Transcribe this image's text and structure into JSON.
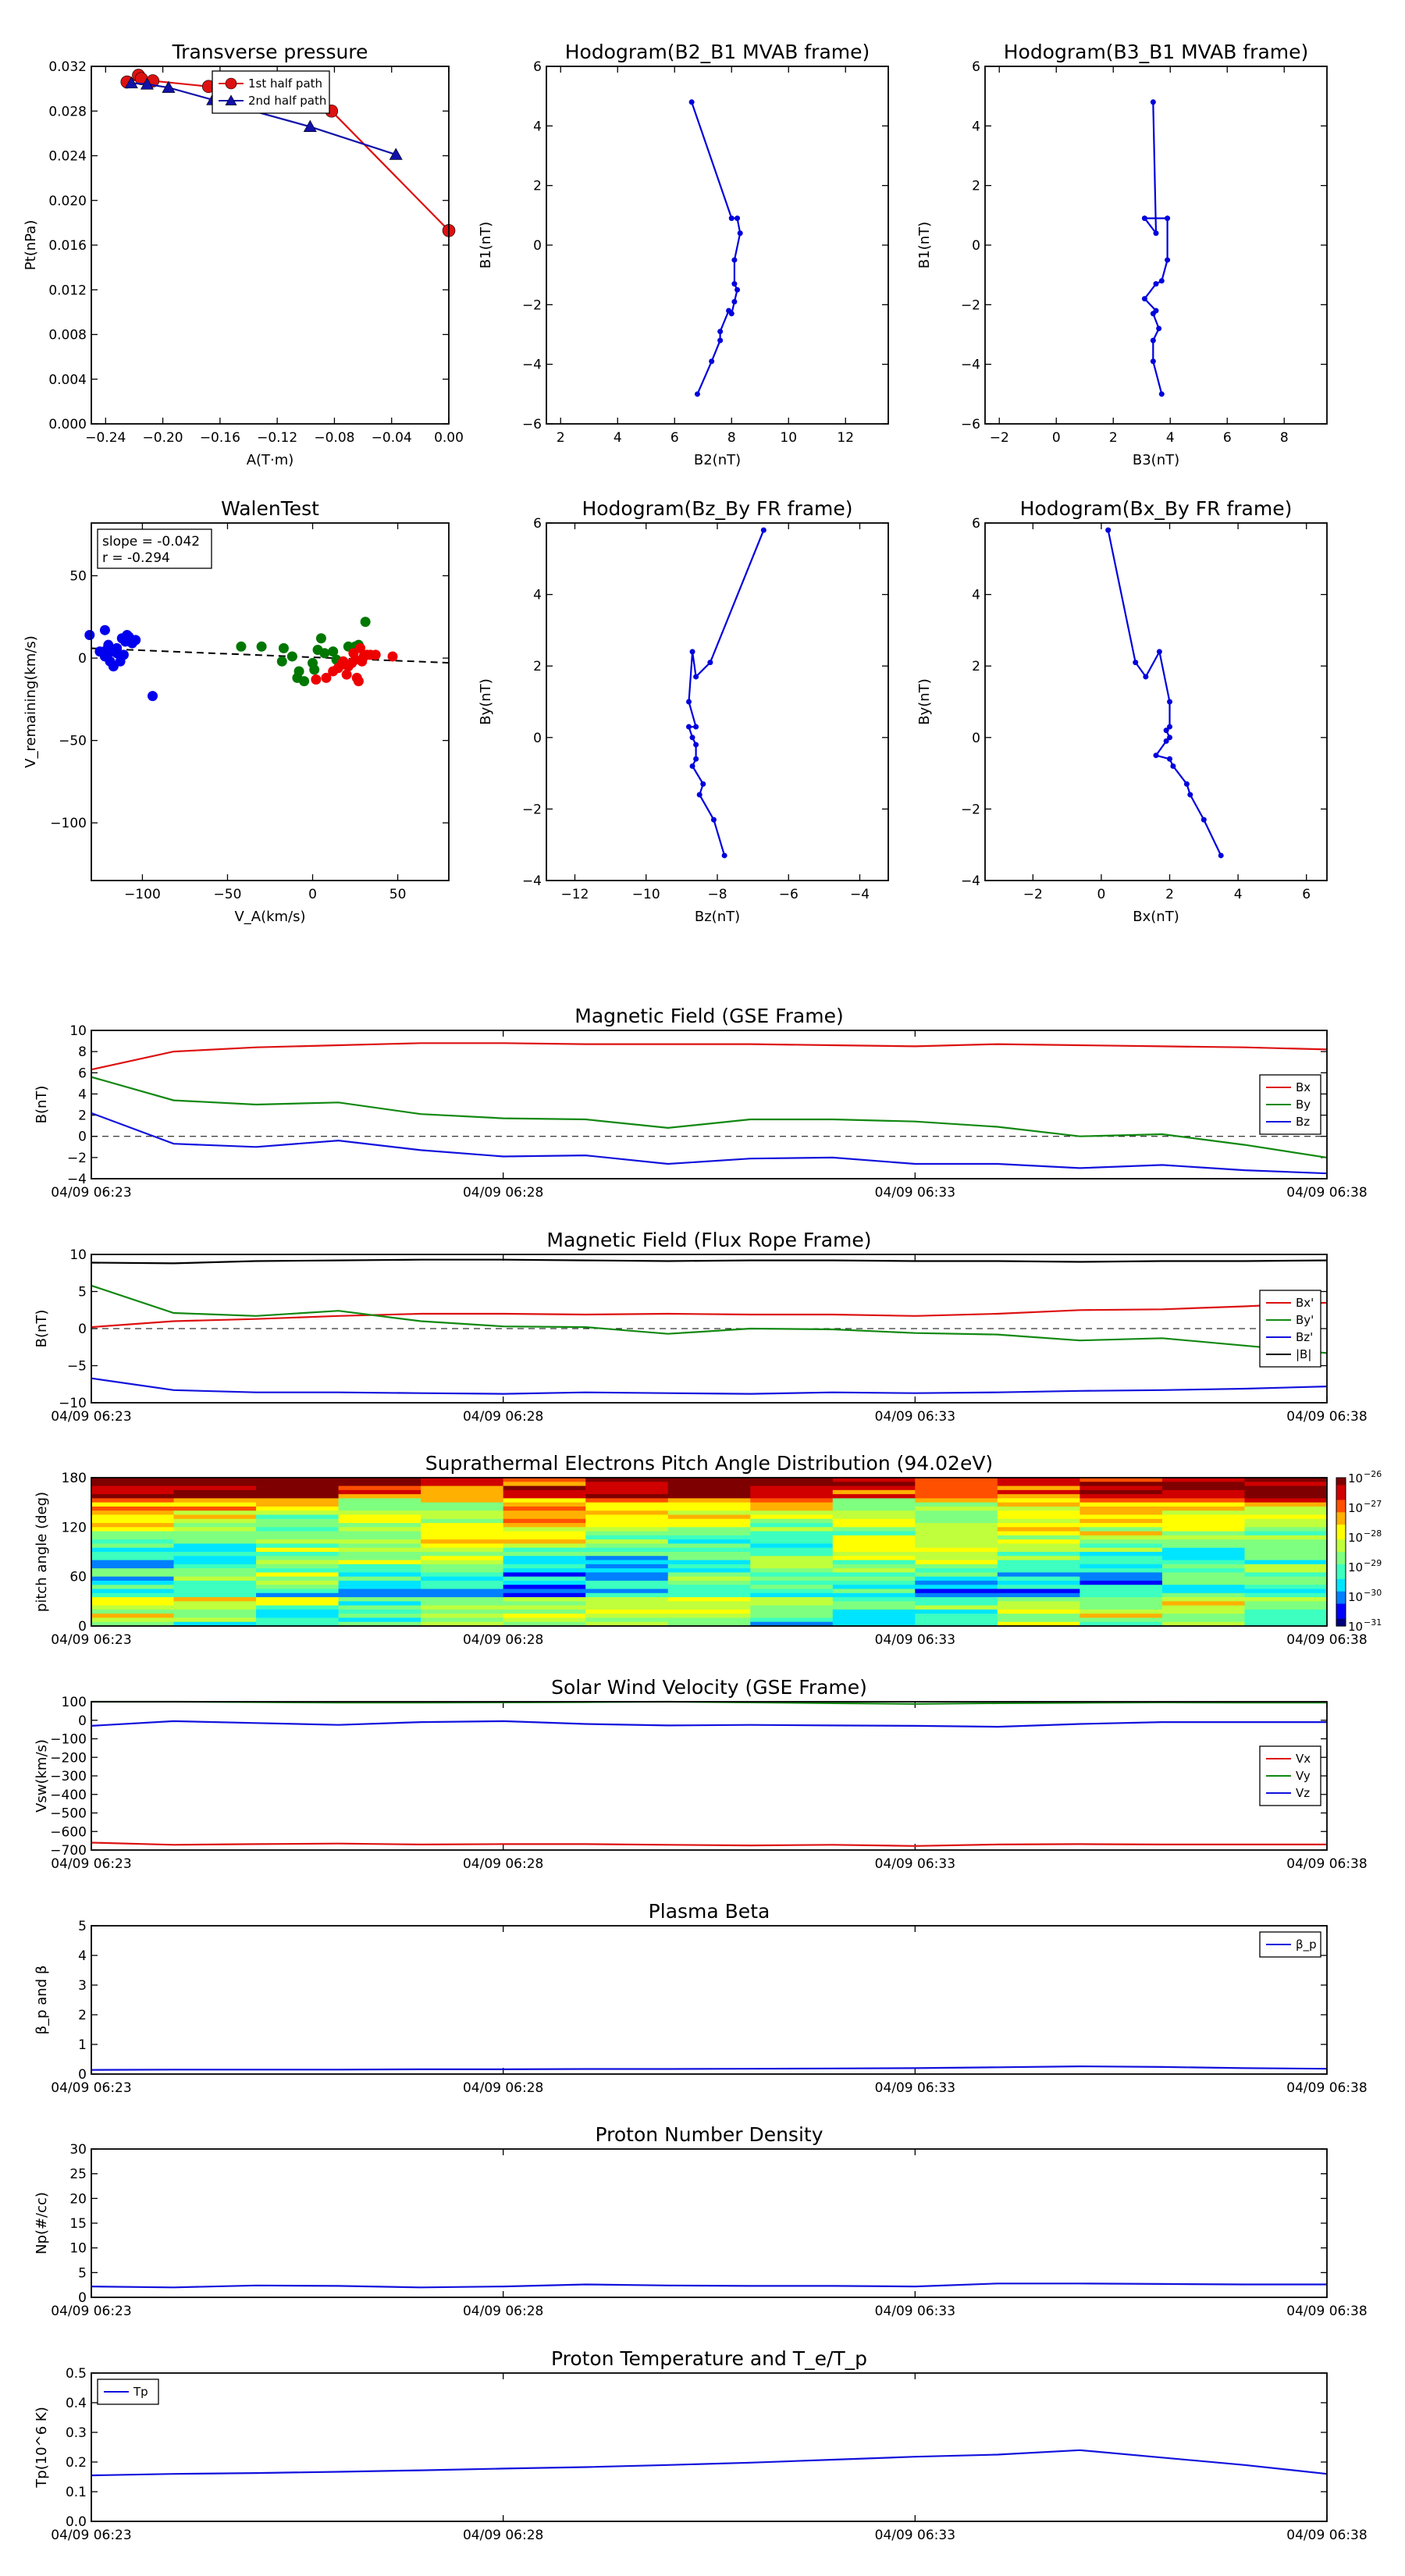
{
  "time_ticks": [
    "04/09 06:23",
    "04/09 06:28",
    "04/09 06:33",
    "04/09 06:38"
  ],
  "chart_data": [
    {
      "type": "line",
      "title": "Transverse pressure",
      "xlabel": "A(T·m)",
      "ylabel": "Pt(nPa)",
      "xlim": [
        -0.25,
        0.0
      ],
      "ylim": [
        0.0,
        0.032
      ],
      "xticks": [
        -0.24,
        -0.2,
        -0.16,
        -0.12,
        -0.08,
        -0.04,
        0.0
      ],
      "xtick_labels": [
        "−0.24",
        "−0.20",
        "−0.16",
        "−0.12",
        "−0.08",
        "−0.04",
        "0.00"
      ],
      "yticks": [
        0.0,
        0.004,
        0.008,
        0.012,
        0.016,
        0.02,
        0.024,
        0.028,
        0.032
      ],
      "ytick_labels": [
        "0.000",
        "0.004",
        "0.008",
        "0.012",
        "0.016",
        "0.020",
        "0.024",
        "0.028",
        "0.032"
      ],
      "legend_location": "top-center",
      "series": [
        {
          "name": "1st half path",
          "color": "#dd1111",
          "marker": "circle",
          "x": [
            0.0,
            -0.082,
            -0.168,
            -0.207,
            -0.217,
            -0.225,
            -0.215
          ],
          "y": [
            0.0173,
            0.028,
            0.0302,
            0.0307,
            0.0312,
            0.0306,
            0.0309
          ]
        },
        {
          "name": "2nd half path",
          "color": "#1111aa",
          "marker": "triangle",
          "x": [
            -0.222,
            -0.211,
            -0.196,
            -0.165,
            -0.097,
            -0.037
          ],
          "y": [
            0.0305,
            0.0304,
            0.0301,
            0.029,
            0.0266,
            0.0241
          ]
        }
      ]
    },
    {
      "type": "line",
      "title": "Hodogram(B2_B1 MVAB frame)",
      "xlabel": "B2(nT)",
      "ylabel": "B1(nT)",
      "xlim": [
        1.5,
        13.5
      ],
      "ylim": [
        -6,
        6
      ],
      "xticks": [
        2,
        4,
        6,
        8,
        10,
        12
      ],
      "xtick_labels": [
        "2",
        "4",
        "6",
        "8",
        "10",
        "12"
      ],
      "yticks": [
        -6,
        -4,
        -2,
        0,
        2,
        4,
        6
      ],
      "ytick_labels": [
        "−6",
        "−4",
        "−2",
        "0",
        "2",
        "4",
        "6"
      ],
      "series": [
        {
          "color": "#0000dd",
          "x": [
            6.6,
            8.0,
            8.2,
            8.3,
            8.1,
            8.1,
            8.2,
            8.1,
            8.0,
            7.9,
            7.6,
            7.6,
            7.3,
            6.8
          ],
          "y": [
            4.8,
            0.9,
            0.9,
            0.4,
            -0.5,
            -1.3,
            -1.5,
            -1.9,
            -2.3,
            -2.2,
            -2.9,
            -3.2,
            -3.9,
            -5.0
          ]
        }
      ]
    },
    {
      "type": "line",
      "title": "Hodogram(B3_B1 MVAB frame)",
      "xlabel": "B3(nT)",
      "ylabel": "B1(nT)",
      "xlim": [
        -2.5,
        9.5
      ],
      "ylim": [
        -6,
        6
      ],
      "xticks": [
        -2,
        0,
        2,
        4,
        6,
        8
      ],
      "xtick_labels": [
        "−2",
        "0",
        "2",
        "4",
        "6",
        "8"
      ],
      "yticks": [
        -6,
        -4,
        -2,
        0,
        2,
        4,
        6
      ],
      "ytick_labels": [
        "−6",
        "−4",
        "−2",
        "0",
        "2",
        "4",
        "6"
      ],
      "series": [
        {
          "color": "#0000dd",
          "x": [
            3.4,
            3.5,
            3.1,
            3.9,
            3.9,
            3.7,
            3.5,
            3.1,
            3.5,
            3.4,
            3.6,
            3.4,
            3.4,
            3.7
          ],
          "y": [
            4.8,
            0.4,
            0.9,
            0.9,
            -0.5,
            -1.2,
            -1.3,
            -1.8,
            -2.2,
            -2.3,
            -2.8,
            -3.2,
            -3.9,
            -5.0
          ]
        }
      ]
    },
    {
      "type": "scatter",
      "title": "WalenTest",
      "xlabel": "V_A(km/s)",
      "ylabel": "V_remaining(km/s)",
      "xlim": [
        -130,
        80
      ],
      "ylim": [
        -135,
        82
      ],
      "xticks": [
        -100,
        -50,
        0,
        50
      ],
      "xtick_labels": [
        "−100",
        "−50",
        "0",
        "50"
      ],
      "yticks": [
        -100,
        -50,
        0,
        50
      ],
      "ytick_labels": [
        "−100",
        "−50",
        "0",
        "50"
      ],
      "annotation": [
        "slope = -0.042",
        "r = -0.294"
      ],
      "fit_line": {
        "slope": -0.042,
        "intercept": 0.5
      },
      "series": [
        {
          "color": "#0000ee",
          "x": [
            -131,
            -122,
            -120,
            -118,
            -115,
            -112,
            -110,
            -108,
            -106,
            -104,
            -125,
            -122,
            -119,
            -117,
            -113,
            -121,
            -111,
            -94,
            -115,
            -109
          ],
          "y": [
            14,
            17,
            8,
            4,
            3,
            12,
            10,
            13,
            9,
            11,
            4,
            1,
            -2,
            -5,
            -2,
            5,
            2,
            -23,
            6,
            14
          ]
        },
        {
          "color": "#007700",
          "x": [
            -42,
            -30,
            -17,
            -12,
            -9,
            -5,
            0,
            3,
            7,
            14,
            21,
            25,
            27,
            31,
            -8,
            1,
            5,
            12,
            -18
          ],
          "y": [
            7,
            7,
            6,
            1,
            -12,
            -14,
            -3,
            5,
            3,
            -1,
            7,
            7,
            8,
            22,
            -8,
            -7,
            12,
            4,
            -2
          ]
        },
        {
          "color": "#ee0000",
          "x": [
            2,
            8,
            12,
            15,
            17,
            20,
            23,
            25,
            26,
            28,
            30,
            32,
            34,
            37,
            47,
            21,
            18,
            27,
            29,
            24
          ],
          "y": [
            -13,
            -12,
            -8,
            -6,
            -4,
            -10,
            -3,
            -1,
            -12,
            6,
            1,
            2,
            2,
            2,
            1,
            -5,
            -2,
            -14,
            -2,
            3
          ]
        }
      ]
    },
    {
      "type": "line",
      "title": "Hodogram(Bz_By FR frame)",
      "xlabel": "Bz(nT)",
      "ylabel": "By(nT)",
      "xlim": [
        -12.8,
        -3.2
      ],
      "ylim": [
        -4,
        6
      ],
      "xticks": [
        -12,
        -10,
        -8,
        -6,
        -4
      ],
      "xtick_labels": [
        "−12",
        "−10",
        "−8",
        "−6",
        "−4"
      ],
      "yticks": [
        -4,
        -2,
        0,
        2,
        4,
        6
      ],
      "ytick_labels": [
        "−4",
        "−2",
        "0",
        "2",
        "4",
        "6"
      ],
      "series": [
        {
          "color": "#0000dd",
          "x": [
            -6.7,
            -8.2,
            -8.6,
            -8.7,
            -8.8,
            -8.6,
            -8.8,
            -8.7,
            -8.6,
            -8.6,
            -8.7,
            -8.4,
            -8.5,
            -8.1,
            -7.8
          ],
          "y": [
            5.8,
            2.1,
            1.7,
            2.4,
            1.0,
            0.3,
            0.3,
            0.0,
            -0.2,
            -0.6,
            -0.8,
            -1.3,
            -1.6,
            -2.3,
            -3.3
          ]
        }
      ]
    },
    {
      "type": "line",
      "title": "Hodogram(Bx_By FR frame)",
      "xlabel": "Bx(nT)",
      "ylabel": "By(nT)",
      "xlim": [
        -3.4,
        6.6
      ],
      "ylim": [
        -4,
        6
      ],
      "xticks": [
        -2,
        0,
        2,
        4,
        6
      ],
      "xtick_labels": [
        "−2",
        "0",
        "2",
        "4",
        "6"
      ],
      "yticks": [
        -4,
        -2,
        0,
        2,
        4,
        6
      ],
      "ytick_labels": [
        "−4",
        "−2",
        "0",
        "2",
        "4",
        "6"
      ],
      "series": [
        {
          "color": "#0000dd",
          "x": [
            0.2,
            1.0,
            1.3,
            1.7,
            2.0,
            2.0,
            1.9,
            2.0,
            1.9,
            1.6,
            2.0,
            2.1,
            2.5,
            2.6,
            3.0,
            3.5
          ],
          "y": [
            5.8,
            2.1,
            1.7,
            2.4,
            1.0,
            0.3,
            0.2,
            0.0,
            -0.1,
            -0.5,
            -0.6,
            -0.8,
            -1.3,
            -1.6,
            -2.3,
            -3.3
          ]
        }
      ]
    },
    {
      "type": "line",
      "title": "Magnetic Field (GSE Frame)",
      "ylabel": "B(nT)",
      "ylim": [
        -4,
        10
      ],
      "yticks": [
        -4,
        -2,
        0,
        2,
        4,
        6,
        8,
        10
      ],
      "ytick_labels": [
        "−4",
        "−2",
        "0",
        "2",
        "4",
        "6",
        "8",
        "10"
      ],
      "legend_location": "right",
      "zero_line": true,
      "series": [
        {
          "name": "Bx",
          "color": "#dd1111",
          "y": [
            6.3,
            8.0,
            8.4,
            8.6,
            8.8,
            8.8,
            8.7,
            8.7,
            8.7,
            8.6,
            8.5,
            8.7,
            8.6,
            8.5,
            8.4,
            8.2
          ]
        },
        {
          "name": "By",
          "color": "#118811",
          "y": [
            5.6,
            3.4,
            3.0,
            3.2,
            2.1,
            1.7,
            1.6,
            0.8,
            1.6,
            1.6,
            1.4,
            0.9,
            0.0,
            0.2,
            -0.8,
            -2.0
          ]
        },
        {
          "name": "Bz",
          "color": "#1111dd",
          "y": [
            2.2,
            -0.7,
            -1.0,
            -0.4,
            -1.3,
            -1.9,
            -1.8,
            -2.6,
            -2.1,
            -2.0,
            -2.6,
            -2.6,
            -3.0,
            -2.7,
            -3.2,
            -3.5
          ]
        }
      ]
    },
    {
      "type": "line",
      "title": "Magnetic Field (Flux Rope Frame)",
      "ylabel": "B(nT)",
      "ylim": [
        -10,
        10
      ],
      "yticks": [
        -10,
        -5,
        0,
        5,
        10
      ],
      "ytick_labels": [
        "−10",
        "−5",
        "0",
        "5",
        "10"
      ],
      "legend_location": "right",
      "zero_line": true,
      "series": [
        {
          "name": "Bx'",
          "color": "#dd1111",
          "y": [
            0.2,
            1.0,
            1.3,
            1.7,
            2.0,
            2.0,
            1.9,
            2.0,
            1.9,
            1.9,
            1.7,
            2.0,
            2.5,
            2.6,
            3.0,
            3.5
          ]
        },
        {
          "name": "By'",
          "color": "#118811",
          "y": [
            5.8,
            2.1,
            1.7,
            2.4,
            1.0,
            0.3,
            0.2,
            -0.7,
            0.0,
            -0.1,
            -0.6,
            -0.8,
            -1.6,
            -1.3,
            -2.3,
            -3.3
          ]
        },
        {
          "name": "Bz'",
          "color": "#1111dd",
          "y": [
            -6.7,
            -8.3,
            -8.6,
            -8.6,
            -8.7,
            -8.8,
            -8.6,
            -8.7,
            -8.8,
            -8.6,
            -8.7,
            -8.6,
            -8.4,
            -8.3,
            -8.1,
            -7.8
          ]
        },
        {
          "name": "|B|",
          "color": "#000000",
          "y": [
            8.9,
            8.8,
            9.1,
            9.2,
            9.3,
            9.3,
            9.2,
            9.1,
            9.2,
            9.2,
            9.1,
            9.1,
            9.0,
            9.1,
            9.1,
            9.2
          ]
        }
      ]
    },
    {
      "type": "heatmap",
      "title": "Suprathermal Electrons Pitch Angle Distribution (94.02eV)",
      "ylabel": "pitch angle (deg)",
      "ylim": [
        0,
        180
      ],
      "yticks": [
        0,
        60,
        120,
        180
      ],
      "ytick_labels": [
        "0",
        "60",
        "120",
        "180"
      ],
      "colorbar_exponents": [
        -26,
        -27,
        -28,
        -29,
        -30,
        -31
      ],
      "colorbar_labels": [
        "10",
        "10",
        "10",
        "10",
        "10",
        "10"
      ],
      "colorbar_range_log": [
        -31,
        -26
      ]
    },
    {
      "type": "line",
      "title": "Solar Wind Velocity (GSE Frame)",
      "ylabel": "Vsw(km/s)",
      "ylim": [
        -700,
        100
      ],
      "yticks": [
        -700,
        -600,
        -500,
        -400,
        -300,
        -200,
        -100,
        0,
        100
      ],
      "ytick_labels": [
        "−700",
        "−600",
        "−500",
        "−400",
        "−300",
        "−200",
        "−100",
        "0",
        "100"
      ],
      "legend_location": "right",
      "series": [
        {
          "name": "Vx",
          "color": "#dd1111",
          "y": [
            -660,
            -672,
            -668,
            -665,
            -670,
            -668,
            -668,
            -672,
            -675,
            -672,
            -678,
            -670,
            -668,
            -670,
            -670,
            -670
          ]
        },
        {
          "name": "Vy",
          "color": "#118811",
          "y": [
            100,
            100,
            98,
            95,
            95,
            96,
            98,
            100,
            96,
            92,
            88,
            92,
            94,
            96,
            95,
            95
          ]
        },
        {
          "name": "Vz",
          "color": "#1111dd",
          "y": [
            -30,
            -5,
            -15,
            -25,
            -10,
            -5,
            -20,
            -28,
            -25,
            -28,
            -30,
            -35,
            -20,
            -10,
            -10,
            -10
          ]
        }
      ]
    },
    {
      "type": "line",
      "title": "Plasma Beta",
      "ylabel": "β_p and β",
      "ylim": [
        0,
        5
      ],
      "yticks": [
        0,
        1,
        2,
        3,
        4,
        5
      ],
      "ytick_labels": [
        "0",
        "1",
        "2",
        "3",
        "4",
        "5"
      ],
      "legend_location": "top-right",
      "series": [
        {
          "name": "β_p",
          "color": "#1111dd",
          "y": [
            0.14,
            0.15,
            0.15,
            0.15,
            0.16,
            0.16,
            0.17,
            0.17,
            0.18,
            0.19,
            0.2,
            0.23,
            0.26,
            0.24,
            0.2,
            0.18
          ]
        }
      ]
    },
    {
      "type": "line",
      "title": "Proton Number Density",
      "ylabel": "Np(#/cc)",
      "ylim": [
        0,
        30
      ],
      "yticks": [
        0,
        5,
        10,
        15,
        20,
        25,
        30
      ],
      "ytick_labels": [
        "0",
        "5",
        "10",
        "15",
        "20",
        "25",
        "30"
      ],
      "series": [
        {
          "color": "#1111dd",
          "y": [
            2.2,
            2.0,
            2.4,
            2.3,
            2.0,
            2.2,
            2.6,
            2.4,
            2.3,
            2.3,
            2.2,
            2.8,
            2.8,
            2.7,
            2.6,
            2.6
          ]
        }
      ]
    },
    {
      "type": "line",
      "title": "Proton Temperature and T_e/T_p",
      "ylabel": "Tp(10^6 K)",
      "ylim": [
        0,
        0.5
      ],
      "yticks": [
        0.0,
        0.1,
        0.2,
        0.3,
        0.4,
        0.5
      ],
      "ytick_labels": [
        "0.0",
        "0.1",
        "0.2",
        "0.3",
        "0.4",
        "0.5"
      ],
      "legend_location": "top-left",
      "series": [
        {
          "name": "Tp",
          "color": "#1111dd",
          "y": [
            0.155,
            0.16,
            0.163,
            0.167,
            0.172,
            0.178,
            0.183,
            0.19,
            0.198,
            0.208,
            0.218,
            0.225,
            0.24,
            0.215,
            0.19,
            0.16
          ]
        }
      ]
    }
  ]
}
